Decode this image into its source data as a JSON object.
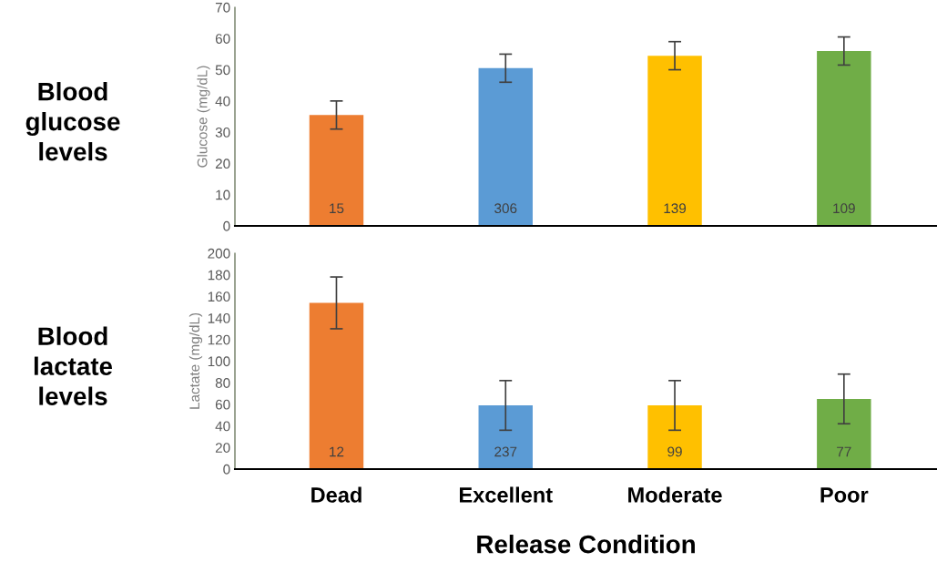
{
  "chart_data": [
    {
      "type": "bar",
      "title": "Blood\nglucose\nlevels",
      "ylabel": "Glucose (mg/dL)",
      "categories": [
        null,
        null,
        null,
        null
      ],
      "values": [
        35.5,
        50.5,
        54.5,
        56
      ],
      "errors": [
        4.5,
        4.5,
        4.5,
        4.5
      ],
      "colors": [
        "#ed7d31",
        "#5b9bd5",
        "#ffc000",
        "#70ad47"
      ],
      "ylim": [
        0,
        70
      ],
      "yticks": [
        0,
        10,
        20,
        30,
        40,
        50,
        60,
        70
      ],
      "tick_labels": "y",
      "annotations": [
        "15",
        "306",
        "139",
        "109"
      ]
    },
    {
      "type": "bar",
      "title": "Blood\nlactate\nlevels",
      "ylabel": "Lactate (mg/dL)",
      "xlabel": "Release Condition",
      "categories": [
        "Dead",
        "Excellent",
        "Moderate",
        "Poor"
      ],
      "values": [
        154,
        59,
        59,
        65
      ],
      "errors": [
        24,
        23,
        23,
        23
      ],
      "colors": [
        "#ed7d31",
        "#5b9bd5",
        "#ffc000",
        "#70ad47"
      ],
      "ylim": [
        0,
        200
      ],
      "yticks": [
        0,
        20,
        40,
        60,
        80,
        100,
        120,
        140,
        160,
        180,
        200
      ],
      "annotations": [
        "12",
        "237",
        "99",
        "77"
      ]
    }
  ]
}
